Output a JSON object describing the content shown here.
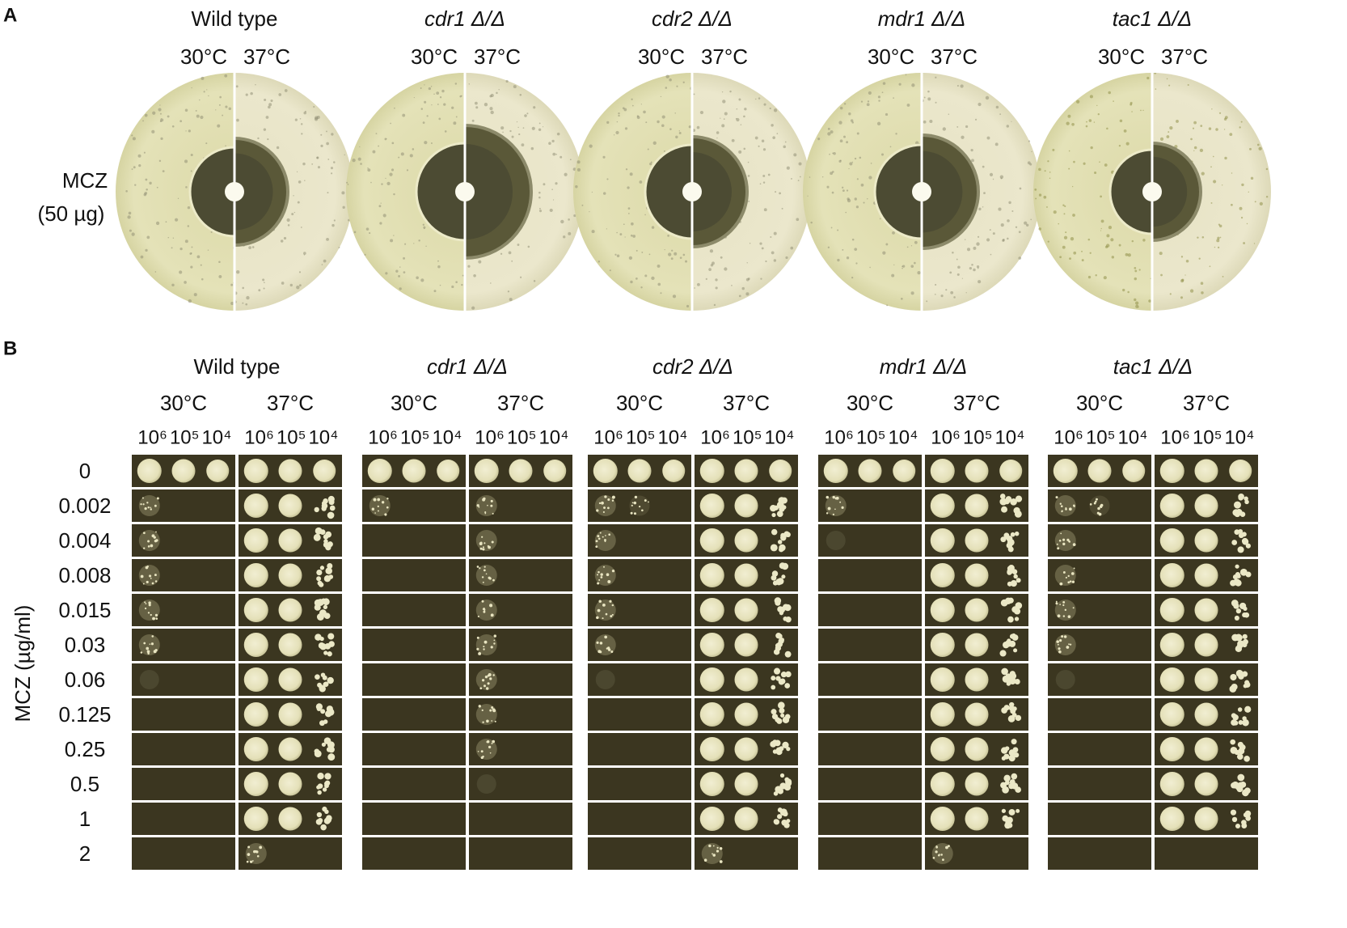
{
  "strains": [
    "Wild type",
    "cdr1 Δ/Δ",
    "cdr2 Δ/Δ",
    "mdr1 Δ/Δ",
    "tac1 Δ/Δ"
  ],
  "temperatures": [
    "30°C",
    "37°C"
  ],
  "panel_a": {
    "label": "A",
    "row_label": [
      "MCZ",
      "(50 µg)"
    ]
  },
  "panel_b": {
    "label": "B",
    "dilutions": [
      "10⁶",
      "10⁵",
      "10⁴"
    ],
    "concentrations": [
      "0",
      "0.002",
      "0.004",
      "0.008",
      "0.015",
      "0.03",
      "0.06",
      "0.125",
      "0.25",
      "0.5",
      "1",
      "2"
    ],
    "axis_label": "MCZ (µg/ml)"
  }
}
